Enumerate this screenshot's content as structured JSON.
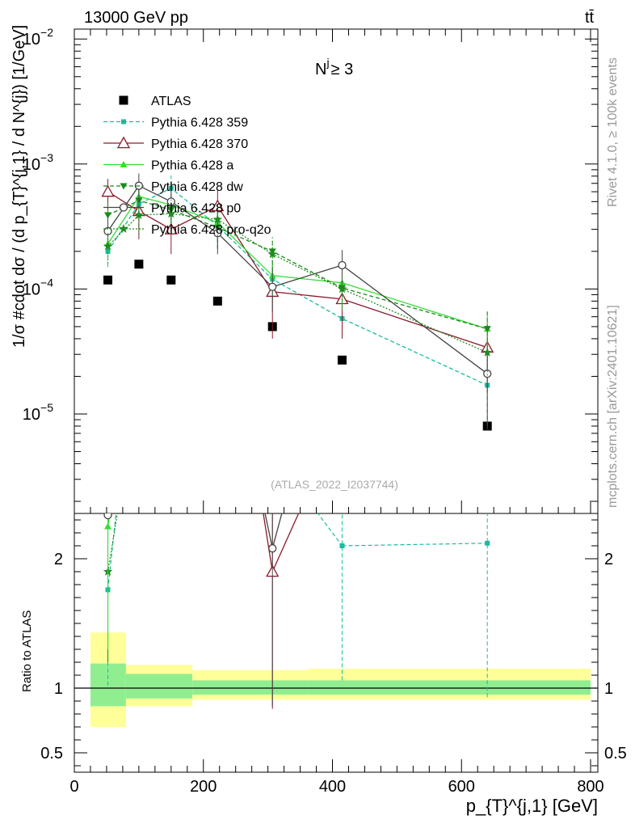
{
  "header": {
    "left_title": "13000 GeV pp",
    "right_title": "tt̄",
    "panel_label": "N",
    "panel_label_sup": "j",
    "panel_label_cond": "≥ 3",
    "watermark": "(ATLAS_2022_I2037744)",
    "side_label_top": "Rivet 4.1.0, ≥ 100k events",
    "side_label_bottom": "mcplots.cern.ch [arXiv:2401.10621]"
  },
  "colors": {
    "atlas": "#000000",
    "p359": "#1abc9c",
    "p370": "#8b1a2b",
    "pa": "#33dd33",
    "pdw": "#1a8a1a",
    "pp0": "#444444",
    "pq2o": "#228b22",
    "band_yellow": "#ffff99",
    "band_green": "#90ee90"
  },
  "chart_data": [
    {
      "type": "line",
      "title": "N^j ≥ 3",
      "ylabel": "1/σ #cdot dσ / (d p_{T}^{j,1} / d N^{j}) [1/GeV]",
      "xlabel": "p_{T}^{j,1} [GeV]",
      "yscale": "log",
      "xlim": [
        0,
        810
      ],
      "ylim": [
        1.6e-06,
        0.012
      ],
      "y_ticks": [
        {
          "v": 1e-05,
          "b": "10",
          "e": "−5"
        },
        {
          "v": 0.0001,
          "b": "10",
          "e": "−4"
        },
        {
          "v": 0.001,
          "b": "10",
          "e": "−3"
        },
        {
          "v": 0.01,
          "b": "10",
          "e": "−2"
        }
      ],
      "series": [
        {
          "name": "ATLAS",
          "key": "atlas",
          "marker": "square",
          "style": "none",
          "x": [
            52,
            100,
            150,
            222,
            307,
            415,
            640
          ],
          "y": [
            0.000118,
            0.000158,
            0.000118,
            8e-05,
            5e-05,
            2.7e-05,
            8e-06
          ]
        },
        {
          "name": "Pythia 6.428 359",
          "key": "p359",
          "marker": "smallsquare",
          "style": "dashed",
          "x": [
            52,
            100,
            150,
            222,
            307,
            415,
            640
          ],
          "y": [
            0.0002,
            0.00048,
            0.00064,
            0.00032,
            0.00012,
            5.8e-05,
            1.7e-05
          ],
          "err_lo": [
            0.00015,
            0.00031,
            0.00047,
            0.00021,
            8.2e-05,
            4.2e-05,
            8e-06
          ],
          "err_hi": [
            0.00025,
            0.00064,
            0.00081,
            0.00042,
            0.00016,
            7.3e-05,
            3e-05
          ]
        },
        {
          "name": "Pythia 6.428 370",
          "key": "p370",
          "marker": "triangle-open",
          "style": "solid",
          "x": [
            52,
            100,
            150,
            222,
            307,
            415,
            640
          ],
          "y": [
            0.0006,
            0.00042,
            0.0003,
            0.00046,
            9.5e-05,
            8.3e-05,
            3.4e-05
          ],
          "err_lo": [
            0.00043,
            0.00025,
            0.00019,
            0.0003,
            4e-05,
            4e-05,
            1.5e-05
          ],
          "err_hi": [
            0.00076,
            0.00058,
            0.00042,
            0.00062,
            0.00015,
            0.00013,
            5.4e-05
          ]
        },
        {
          "name": "Pythia 6.428 a",
          "key": "pa",
          "marker": "triangle",
          "style": "solid",
          "x": [
            52,
            100,
            150,
            222,
            307,
            415,
            640
          ],
          "y": [
            0.00023,
            0.00055,
            0.00047,
            0.00034,
            0.000128,
            0.000112,
            4.8e-05
          ],
          "err_lo": [
            0.00017,
            0.00038,
            0.00033,
            0.00023,
            8.8e-05,
            7.5e-05,
            3e-05
          ],
          "err_hi": [
            0.00029,
            0.00072,
            0.00061,
            0.00045,
            0.00017,
            0.00015,
            6.6e-05
          ]
        },
        {
          "name": "Pythia 6.428 dw",
          "key": "pdw",
          "marker": "triangle-down",
          "style": "dashed",
          "x": [
            52,
            100,
            150,
            222,
            307,
            415,
            640
          ],
          "y": [
            0.00039,
            0.00051,
            0.00043,
            0.00031,
            0.0002,
            0.000102,
            4.8e-05
          ],
          "err_lo": [
            0.00028,
            0.00036,
            0.0003,
            0.00021,
            0.00014,
            7e-05,
            3e-05
          ],
          "err_hi": [
            0.0005,
            0.00066,
            0.00056,
            0.00041,
            0.00026,
            0.000135,
            6.6e-05
          ]
        },
        {
          "name": "Pythia 6.428 p0",
          "key": "pp0",
          "marker": "circle-open",
          "style": "solid",
          "x": [
            52,
            100,
            150,
            222,
            307,
            415,
            640
          ],
          "y": [
            0.00029,
            0.00067,
            0.0005,
            0.00028,
            0.000104,
            0.000155,
            2.1e-05
          ],
          "err_lo": [
            0.00021,
            0.0005,
            0.00036,
            0.00019,
            6.5e-05,
            0.000105,
            7.5e-06
          ],
          "err_hi": [
            0.00037,
            0.00084,
            0.00064,
            0.00037,
            0.000145,
            0.000205,
            3.5e-05
          ]
        },
        {
          "name": "Pythia 6.428 pro-q2o",
          "key": "pq2o",
          "marker": "star",
          "style": "dotted",
          "x": [
            52,
            100,
            150,
            222,
            307,
            415,
            640
          ],
          "y": [
            0.00022,
            0.00039,
            0.0004,
            0.00036,
            0.00019,
            0.0001,
            3.1e-05
          ],
          "err_lo": [
            0.00016,
            0.00027,
            0.00028,
            0.00025,
            0.00013,
            6.8e-05,
            1.7e-05
          ],
          "err_hi": [
            0.00028,
            0.00051,
            0.00052,
            0.00047,
            0.00025,
            0.000132,
            4.5e-05
          ]
        }
      ]
    },
    {
      "type": "line",
      "ylabel": "Ratio to ATLAS",
      "xlabel": "p_{T}^{j,1} [GeV]",
      "xlim": [
        0,
        810
      ],
      "ylim": [
        0.35,
        2.35
      ],
      "y_ticks": [
        {
          "v": 0.5,
          "label": "0.5"
        },
        {
          "v": 1,
          "label": "1"
        },
        {
          "v": 2,
          "label": "2"
        }
      ],
      "x_ticks": [
        0,
        200,
        400,
        600,
        800
      ],
      "bands": [
        {
          "x0": 25,
          "x1": 80,
          "y_lo": 0.7,
          "y_hi": 1.43,
          "g_lo": 0.86,
          "g_hi": 1.19
        },
        {
          "x0": 80,
          "x1": 183,
          "y_lo": 0.86,
          "y_hi": 1.18,
          "g_lo": 0.92,
          "g_hi": 1.11
        },
        {
          "x0": 183,
          "x1": 363,
          "y_lo": 0.91,
          "y_hi": 1.14,
          "g_lo": 0.95,
          "g_hi": 1.06
        },
        {
          "x0": 363,
          "x1": 800,
          "y_lo": 0.91,
          "y_hi": 1.15,
          "g_lo": 0.95,
          "g_hi": 1.06
        }
      ],
      "series": [
        {
          "key": "p359",
          "x": [
            52,
            415,
            640
          ],
          "y": [
            1.76,
            2.1,
            2.12
          ],
          "err_lo": [
            1.02,
            1.06,
            0.93
          ],
          "err_hi": [
            2.35,
            2.35,
            2.35
          ]
        },
        {
          "key": "p370",
          "x": [
            307
          ],
          "y": [
            1.9
          ],
          "err_lo": [
            0.84
          ],
          "err_hi": [
            2.35
          ]
        },
        {
          "key": "pp0",
          "x": [
            307
          ],
          "y": [
            2.08
          ],
          "err_lo": [
            0.86
          ],
          "err_hi": [
            2.35
          ]
        },
        {
          "key": "pq2o",
          "x": [
            52
          ],
          "y": [
            1.9
          ],
          "err_lo": [
            1.2
          ],
          "err_hi": [
            2.35
          ]
        },
        {
          "key": "pa",
          "x": [
            52
          ],
          "y": [
            2.25
          ],
          "err_lo": [
            1.3
          ],
          "err_hi": [
            2.35
          ]
        }
      ]
    }
  ]
}
